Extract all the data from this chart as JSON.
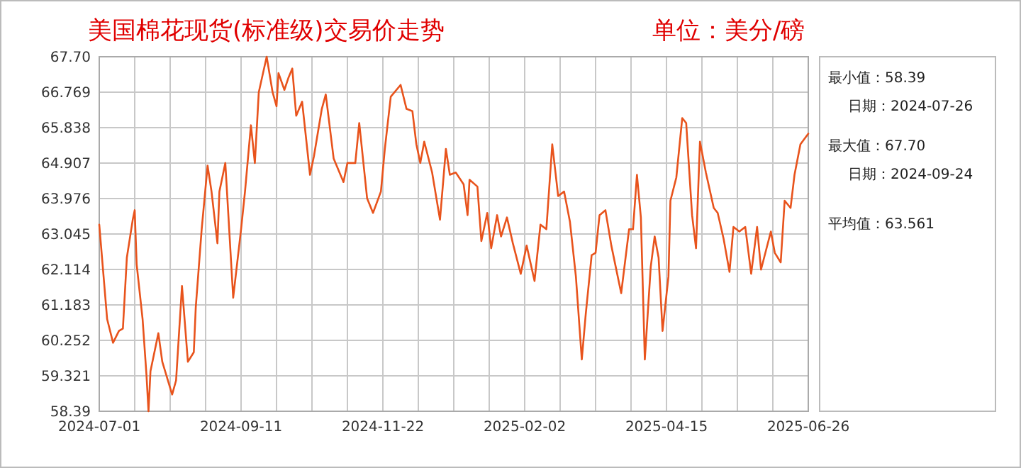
{
  "chart_data": {
    "type": "line",
    "title": "美国棉花现货(标准级)交易价走势",
    "subtitle": "单位：美分/磅",
    "annotations": [
      "最小值：58.39",
      "日期：2024-07-26",
      "最大值：67.70",
      "日期：2024-09-24",
      "平均值：63.561"
    ],
    "x": [
      "2024-07-01",
      "2024-07-03",
      "2024-07-05",
      "2024-07-08",
      "2024-07-11",
      "2024-07-13",
      "2024-07-15",
      "2024-07-18",
      "2024-07-19",
      "2024-07-20",
      "2024-07-23",
      "2024-07-25",
      "2024-07-26",
      "2024-07-27",
      "2024-07-31",
      "2024-08-02",
      "2024-08-07",
      "2024-08-09",
      "2024-08-12",
      "2024-08-15",
      "2024-08-18",
      "2024-08-19",
      "2024-08-22",
      "2024-08-25",
      "2024-08-27",
      "2024-08-30",
      "2024-08-31",
      "2024-09-03",
      "2024-09-07",
      "2024-09-11",
      "2024-09-13",
      "2024-09-16",
      "2024-09-18",
      "2024-09-20",
      "2024-09-24",
      "2024-09-27",
      "2024-09-29",
      "2024-09-30",
      "2024-10-03",
      "2024-10-05",
      "2024-10-07",
      "2024-10-09",
      "2024-10-12",
      "2024-10-16",
      "2024-10-18",
      "2024-10-22",
      "2024-10-24",
      "2024-10-28",
      "2024-11-02",
      "2024-11-04",
      "2024-11-08",
      "2024-11-10",
      "2024-11-14",
      "2024-11-17",
      "2024-11-21",
      "2024-11-23",
      "2024-11-26",
      "2024-12-01",
      "2024-12-04",
      "2024-12-07",
      "2024-12-09",
      "2024-12-11",
      "2024-12-13",
      "2024-12-17",
      "2024-12-21",
      "2024-12-24",
      "2024-12-26",
      "2024-12-29",
      "2025-01-02",
      "2025-01-04",
      "2025-01-05",
      "2025-01-09",
      "2025-01-11",
      "2025-01-14",
      "2025-01-16",
      "2025-01-19",
      "2025-01-21",
      "2025-01-24",
      "2025-01-27",
      "2025-01-31",
      "2025-02-03",
      "2025-02-07",
      "2025-02-10",
      "2025-02-13",
      "2025-02-16",
      "2025-02-19",
      "2025-02-22",
      "2025-02-25",
      "2025-02-28",
      "2025-03-03",
      "2025-03-05",
      "2025-03-08",
      "2025-03-10",
      "2025-03-12",
      "2025-03-15",
      "2025-03-18",
      "2025-03-23",
      "2025-03-27",
      "2025-03-29",
      "2025-03-31",
      "2025-04-02",
      "2025-04-04",
      "2025-04-07",
      "2025-04-09",
      "2025-04-11",
      "2025-04-13",
      "2025-04-16",
      "2025-04-17",
      "2025-04-20",
      "2025-04-23",
      "2025-04-25",
      "2025-04-28",
      "2025-04-30",
      "2025-05-02",
      "2025-05-05",
      "2025-05-09",
      "2025-05-11",
      "2025-05-14",
      "2025-05-17",
      "2025-05-19",
      "2025-05-22",
      "2025-05-25",
      "2025-05-28",
      "2025-05-31",
      "2025-06-02",
      "2025-06-07",
      "2025-06-09",
      "2025-06-12",
      "2025-06-14",
      "2025-06-17",
      "2025-06-19",
      "2025-06-22",
      "2025-06-26"
    ],
    "series": [
      {
        "color": "#e8531c",
        "values": [
          63.29,
          62.05,
          60.81,
          60.19,
          60.5,
          60.56,
          62.42,
          63.42,
          63.67,
          62.24,
          60.81,
          59.32,
          58.39,
          59.44,
          60.44,
          59.69,
          58.83,
          59.2,
          61.68,
          59.69,
          59.94,
          61.12,
          63.17,
          64.84,
          64.16,
          62.8,
          64.16,
          64.91,
          61.37,
          63.17,
          64.16,
          65.9,
          64.91,
          66.77,
          67.7,
          66.77,
          66.4,
          67.27,
          66.83,
          67.14,
          67.39,
          66.15,
          66.52,
          64.6,
          65.09,
          66.33,
          66.71,
          65.03,
          64.41,
          64.91,
          64.91,
          65.96,
          63.98,
          63.6,
          64.16,
          65.28,
          66.65,
          66.96,
          66.33,
          66.27,
          65.4,
          64.91,
          65.47,
          64.66,
          63.42,
          65.28,
          64.6,
          64.66,
          64.35,
          63.54,
          64.47,
          64.29,
          62.86,
          63.6,
          62.67,
          63.54,
          62.98,
          63.48,
          62.8,
          62.0,
          62.74,
          61.81,
          63.29,
          63.17,
          65.4,
          64.04,
          64.16,
          63.36,
          61.93,
          59.75,
          60.94,
          62.49,
          62.55,
          63.54,
          63.67,
          62.74,
          61.49,
          63.17,
          63.17,
          64.6,
          63.48,
          59.75,
          62.18,
          62.98,
          62.42,
          60.5,
          61.93,
          63.92,
          64.53,
          66.09,
          65.96,
          63.54,
          62.67,
          65.47,
          64.66,
          63.73,
          63.6,
          62.92,
          62.05,
          63.23,
          63.11,
          63.23,
          62.0,
          63.23,
          62.11,
          63.11,
          62.55,
          62.3,
          63.92,
          63.73,
          64.6,
          65.4,
          65.68
        ]
      }
    ],
    "xlim": [
      "2024-07-01",
      "2025-06-26"
    ],
    "xticks": [
      {
        "value": "2024-07-01",
        "label": "2024-07-01"
      },
      {
        "value": "2024-07-19",
        "label": null
      },
      {
        "value": "2024-08-06",
        "label": null
      },
      {
        "value": "2024-08-24",
        "label": null
      },
      {
        "value": "2024-09-11",
        "label": "2024-09-11"
      },
      {
        "value": "2024-09-29",
        "label": null
      },
      {
        "value": "2024-10-17",
        "label": null
      },
      {
        "value": "2024-11-04",
        "label": null
      },
      {
        "value": "2024-11-22",
        "label": "2024-11-22"
      },
      {
        "value": "2024-12-10",
        "label": null
      },
      {
        "value": "2024-12-28",
        "label": null
      },
      {
        "value": "2025-01-15",
        "label": null
      },
      {
        "value": "2025-02-02",
        "label": "2025-02-02"
      },
      {
        "value": "2025-02-20",
        "label": null
      },
      {
        "value": "2025-03-10",
        "label": null
      },
      {
        "value": "2025-03-28",
        "label": null
      },
      {
        "value": "2025-04-15",
        "label": "2025-04-15"
      },
      {
        "value": "2025-05-03",
        "label": null
      },
      {
        "value": "2025-05-21",
        "label": null
      },
      {
        "value": "2025-06-08",
        "label": null
      },
      {
        "value": "2025-06-26",
        "label": "2025-06-26"
      }
    ],
    "ylim": [
      58.39,
      67.7
    ],
    "yticks": [
      58.39,
      59.321,
      60.252,
      61.183,
      62.114,
      63.045,
      63.976,
      64.907,
      65.838,
      66.769,
      {
        "value": 67.7,
        "label": "67.70"
      }
    ],
    "grid": true,
    "marker": "none",
    "line_style": "solid"
  }
}
